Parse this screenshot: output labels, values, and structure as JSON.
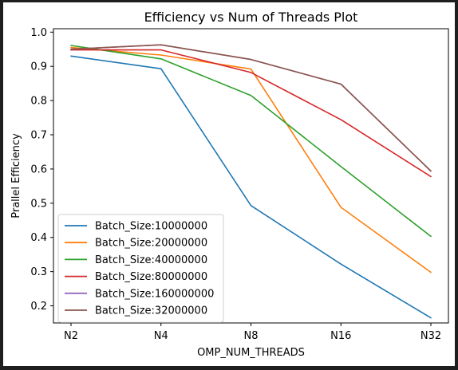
{
  "chart_data": {
    "type": "line",
    "title": "Efficiency vs Num of Threads Plot",
    "xlabel": "OMP_NUM_THREADS",
    "ylabel": "Prallel Efficiency",
    "categories": [
      "N2",
      "N4",
      "N8",
      "N16",
      "N32"
    ],
    "ylim": [
      0.15,
      1.01
    ],
    "yticks": [
      0.2,
      0.3,
      0.4,
      0.5,
      0.6,
      0.7,
      0.8,
      0.9,
      1.0
    ],
    "ytick_labels": [
      "0.2",
      "0.3",
      "0.4",
      "0.5",
      "0.6",
      "0.7",
      "0.8",
      "0.9",
      "1.0"
    ],
    "grid": false,
    "legend_position": "lower-left",
    "series": [
      {
        "name": "Batch_Size:10000000",
        "color": "#1f77b4",
        "values": [
          0.93,
          0.893,
          0.493,
          0.322,
          0.165
        ]
      },
      {
        "name": "Batch_Size:20000000",
        "color": "#ff7f0e",
        "values": [
          0.955,
          0.933,
          0.892,
          0.488,
          0.298
        ]
      },
      {
        "name": "Batch_Size:40000000",
        "color": "#2ca02c",
        "values": [
          0.961,
          0.922,
          0.815,
          0.607,
          0.403
        ]
      },
      {
        "name": "Batch_Size:80000000",
        "color": "#d62728",
        "values": [
          0.948,
          0.948,
          0.882,
          0.744,
          0.578
        ]
      },
      {
        "name": "Batch_Size:160000000",
        "color": "#9467bd",
        "values": [
          0.95,
          0.963,
          0.92,
          0.848,
          0.594
        ]
      },
      {
        "name": "Batch_Size:32000000",
        "color": "#8c564b",
        "values": [
          0.95,
          0.963,
          0.92,
          0.848,
          0.594
        ]
      }
    ]
  }
}
